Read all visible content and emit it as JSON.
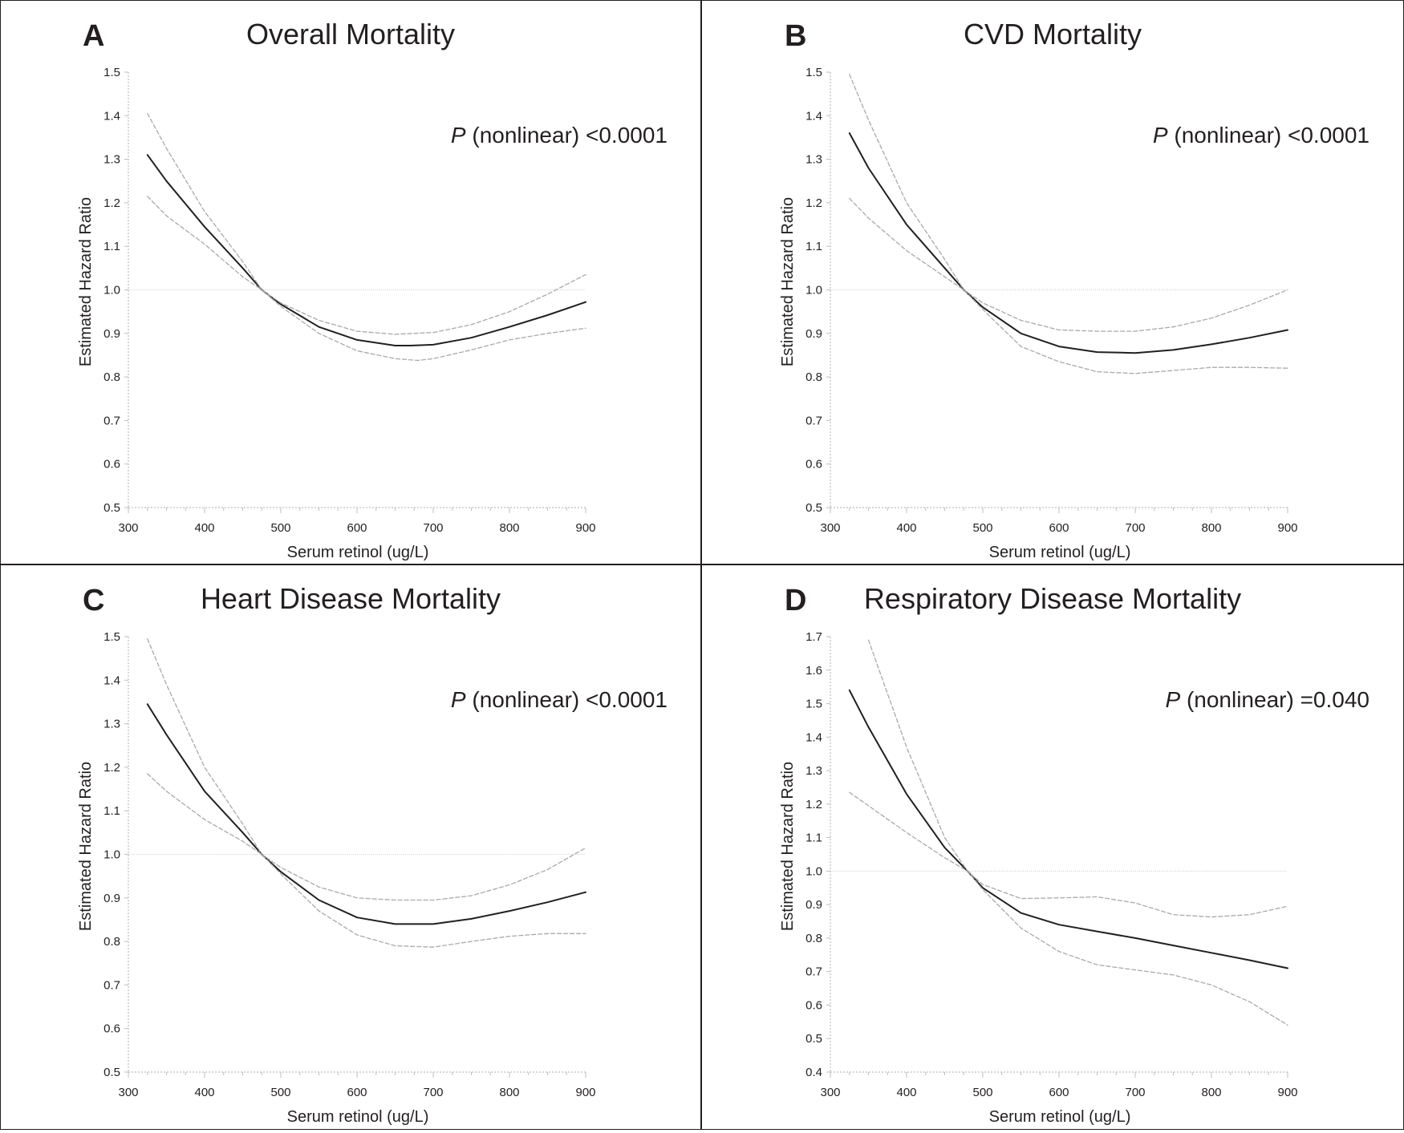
{
  "chart_data": [
    {
      "type": "line",
      "panel_letter": "A",
      "title": "Overall Mortality",
      "annotation": {
        "italic": "P",
        "text": "(nonlinear) <0.0001"
      },
      "xlabel": "Serum retinol (ug/L)",
      "ylabel": "Estimated Hazard Ratio",
      "xlim": [
        300,
        900
      ],
      "ylim": [
        0.5,
        1.5
      ],
      "xticks": [
        300,
        400,
        500,
        600,
        700,
        800,
        900
      ],
      "yticks": [
        0.5,
        0.6,
        0.7,
        0.8,
        0.9,
        1.0,
        1.1,
        1.2,
        1.3,
        1.4,
        1.5
      ],
      "reference_line": 1.0,
      "series": [
        {
          "role": "estimate",
          "color": "#231f20",
          "x": [
            325,
            350,
            400,
            450,
            475,
            500,
            550,
            600,
            650,
            670,
            700,
            750,
            800,
            850,
            900
          ],
          "y": [
            1.31,
            1.25,
            1.145,
            1.05,
            1.0,
            0.967,
            0.915,
            0.885,
            0.872,
            0.872,
            0.874,
            0.89,
            0.915,
            0.942,
            0.972
          ]
        },
        {
          "role": "ci-upper",
          "color": "#a7a9ac",
          "x": [
            325,
            350,
            400,
            450,
            475,
            500,
            550,
            600,
            650,
            700,
            750,
            800,
            850,
            900
          ],
          "y": [
            1.405,
            1.325,
            1.18,
            1.065,
            1.0,
            0.97,
            0.93,
            0.905,
            0.898,
            0.902,
            0.92,
            0.95,
            0.99,
            1.035
          ]
        },
        {
          "role": "ci-lower",
          "color": "#a7a9ac",
          "x": [
            325,
            350,
            400,
            450,
            475,
            500,
            550,
            600,
            650,
            680,
            700,
            750,
            800,
            850,
            900
          ],
          "y": [
            1.215,
            1.17,
            1.105,
            1.03,
            1.0,
            0.962,
            0.9,
            0.86,
            0.842,
            0.838,
            0.842,
            0.862,
            0.885,
            0.9,
            0.912
          ]
        }
      ]
    },
    {
      "type": "line",
      "panel_letter": "B",
      "title": "CVD Mortality",
      "annotation": {
        "italic": "P",
        "text": "(nonlinear) <0.0001"
      },
      "xlabel": "Serum retinol (ug/L)",
      "ylabel": "Estimated Hazard Ratio",
      "xlim": [
        300,
        900
      ],
      "ylim": [
        0.5,
        1.5
      ],
      "xticks": [
        300,
        400,
        500,
        600,
        700,
        800,
        900
      ],
      "yticks": [
        0.5,
        0.6,
        0.7,
        0.8,
        0.9,
        1.0,
        1.1,
        1.2,
        1.3,
        1.4,
        1.5
      ],
      "reference_line": 1.0,
      "series": [
        {
          "role": "estimate",
          "color": "#231f20",
          "x": [
            325,
            350,
            400,
            450,
            475,
            500,
            550,
            600,
            650,
            700,
            750,
            800,
            850,
            900
          ],
          "y": [
            1.36,
            1.28,
            1.15,
            1.05,
            1.0,
            0.96,
            0.9,
            0.87,
            0.857,
            0.855,
            0.862,
            0.875,
            0.89,
            0.908
          ]
        },
        {
          "role": "ci-upper",
          "color": "#a7a9ac",
          "x": [
            325,
            350,
            400,
            450,
            475,
            500,
            550,
            600,
            650,
            700,
            750,
            800,
            850,
            900
          ],
          "y": [
            1.495,
            1.39,
            1.2,
            1.07,
            1.0,
            0.97,
            0.93,
            0.908,
            0.905,
            0.905,
            0.915,
            0.935,
            0.965,
            1.0
          ]
        },
        {
          "role": "ci-lower",
          "color": "#a7a9ac",
          "x": [
            325,
            350,
            400,
            450,
            475,
            500,
            550,
            600,
            650,
            700,
            750,
            800,
            850,
            900
          ],
          "y": [
            1.21,
            1.165,
            1.09,
            1.03,
            1.0,
            0.955,
            0.87,
            0.835,
            0.812,
            0.808,
            0.815,
            0.822,
            0.822,
            0.82
          ]
        }
      ]
    },
    {
      "type": "line",
      "panel_letter": "C",
      "title": "Heart Disease Mortality",
      "annotation": {
        "italic": "P",
        "text": "(nonlinear) <0.0001"
      },
      "xlabel": "Serum retinol (ug/L)",
      "ylabel": "Estimated Hazard Ratio",
      "xlim": [
        300,
        900
      ],
      "ylim": [
        0.5,
        1.5
      ],
      "xticks": [
        300,
        400,
        500,
        600,
        700,
        800,
        900
      ],
      "yticks": [
        0.5,
        0.6,
        0.7,
        0.8,
        0.9,
        1.0,
        1.1,
        1.2,
        1.3,
        1.4,
        1.5
      ],
      "reference_line": 1.0,
      "series": [
        {
          "role": "estimate",
          "color": "#231f20",
          "x": [
            325,
            350,
            400,
            450,
            475,
            500,
            550,
            600,
            650,
            700,
            750,
            800,
            850,
            900
          ],
          "y": [
            1.345,
            1.275,
            1.145,
            1.05,
            1.0,
            0.96,
            0.895,
            0.855,
            0.84,
            0.84,
            0.852,
            0.87,
            0.89,
            0.913
          ]
        },
        {
          "role": "ci-upper",
          "color": "#a7a9ac",
          "x": [
            325,
            350,
            400,
            450,
            475,
            500,
            550,
            600,
            650,
            700,
            750,
            800,
            850,
            900
          ],
          "y": [
            1.495,
            1.39,
            1.2,
            1.07,
            1.0,
            0.97,
            0.925,
            0.9,
            0.895,
            0.895,
            0.905,
            0.93,
            0.965,
            1.015
          ]
        },
        {
          "role": "ci-lower",
          "color": "#a7a9ac",
          "x": [
            325,
            350,
            400,
            450,
            475,
            500,
            550,
            600,
            650,
            700,
            750,
            800,
            850,
            900
          ],
          "y": [
            1.185,
            1.145,
            1.08,
            1.03,
            1.0,
            0.955,
            0.87,
            0.815,
            0.79,
            0.787,
            0.8,
            0.812,
            0.818,
            0.818
          ]
        }
      ]
    },
    {
      "type": "line",
      "panel_letter": "D",
      "title": "Respiratory Disease Mortality",
      "annotation": {
        "italic": "P",
        "text": "(nonlinear) =0.040"
      },
      "xlabel": "Serum retinol (ug/L)",
      "ylabel": "Estimated Hazard Ratio",
      "xlim": [
        300,
        900
      ],
      "ylim": [
        0.4,
        1.7
      ],
      "xticks": [
        300,
        400,
        500,
        600,
        700,
        800,
        900
      ],
      "yticks": [
        0.4,
        0.5,
        0.6,
        0.7,
        0.8,
        0.9,
        1.0,
        1.1,
        1.2,
        1.3,
        1.4,
        1.5,
        1.6,
        1.7
      ],
      "reference_line": 1.0,
      "series": [
        {
          "role": "estimate",
          "color": "#231f20",
          "x": [
            325,
            350,
            400,
            450,
            480,
            500,
            550,
            600,
            650,
            700,
            750,
            800,
            850,
            900
          ],
          "y": [
            1.54,
            1.43,
            1.23,
            1.07,
            1.0,
            0.95,
            0.875,
            0.84,
            0.82,
            0.8,
            0.778,
            0.756,
            0.734,
            0.71
          ]
        },
        {
          "role": "ci-upper",
          "color": "#a7a9ac",
          "x": [
            350,
            400,
            450,
            480,
            500,
            550,
            600,
            650,
            700,
            750,
            800,
            850,
            900
          ],
          "y": [
            1.69,
            1.37,
            1.1,
            1.0,
            0.96,
            0.918,
            0.92,
            0.923,
            0.905,
            0.87,
            0.863,
            0.87,
            0.895
          ]
        },
        {
          "role": "ci-lower",
          "color": "#a7a9ac",
          "x": [
            325,
            350,
            400,
            450,
            480,
            500,
            550,
            600,
            650,
            700,
            750,
            800,
            850,
            900
          ],
          "y": [
            1.235,
            1.195,
            1.115,
            1.04,
            1.0,
            0.945,
            0.83,
            0.76,
            0.72,
            0.705,
            0.69,
            0.66,
            0.61,
            0.54
          ]
        }
      ]
    }
  ]
}
